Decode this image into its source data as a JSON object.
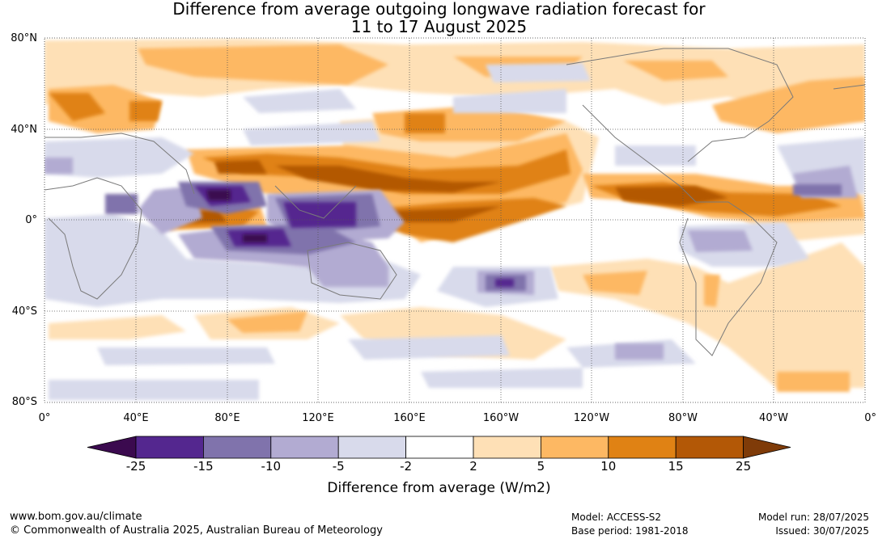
{
  "title_line1": "Difference from average outgoing longwave radiation forecast for",
  "title_line2": "11 to 17 August 2025",
  "lat_labels": [
    "80°N",
    "40°N",
    "0°",
    "40°S",
    "80°S"
  ],
  "lon_labels": [
    "0°",
    "40°E",
    "80°E",
    "120°E",
    "160°E",
    "160°W",
    "120°W",
    "80°W",
    "40°W",
    "0°"
  ],
  "colorbar": {
    "ticks": [
      "-25",
      "-15",
      "-10",
      "-5",
      "-2",
      "2",
      "5",
      "10",
      "15",
      "25"
    ],
    "colors": [
      "#3b0a4f",
      "#54278f",
      "#8073ac",
      "#b2abd2",
      "#d8daeb",
      "#ffffff",
      "#fee0b6",
      "#fdb863",
      "#e08214",
      "#b35806",
      "#7f3b08"
    ],
    "label": "Difference from average (W/m2)"
  },
  "footer": {
    "url": "www.bom.gov.au/climate",
    "copyright": "© Commonwealth of Australia 2025, Australian Bureau of Meteorology",
    "model": "Model: ACCESS-S2",
    "base_period": "Base period: 1981-2018",
    "model_run": "Model run: 28/07/2025",
    "issued": "Issued: 30/07/2025"
  }
}
